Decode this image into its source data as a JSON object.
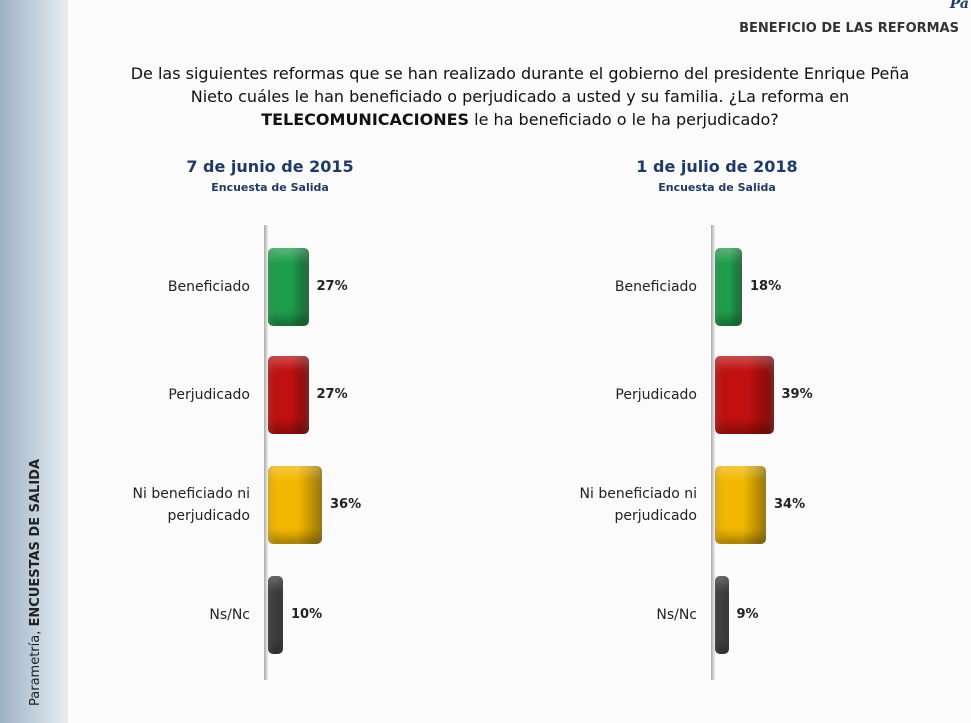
{
  "corner": "Pa",
  "header": "BENEFICIO DE LAS REFORMAS",
  "question": {
    "lines": [
      "De las siguientes reformas que se han realizado durante el gobierno del presidente Enrique Peña",
      "Nieto cuáles le han beneficiado o perjudicado a usted y su familia. ¿La reforma en"
    ],
    "bold": "TELECOMUNICACIONES",
    "rest": "le ha beneficiado o le ha perjudicado?"
  },
  "sidebar": {
    "brand": "Parametría,",
    "text": "ENCUESTAS DE SALIDA"
  },
  "chart_data": [
    {
      "type": "bar",
      "orientation": "horizontal",
      "title": "7 de junio de 2015",
      "subtitle": "Encuesta de Salida",
      "categories": [
        "Beneficiado",
        "Perjudicado",
        "Ni beneficiado ni perjudicado",
        "Ns/Nc"
      ],
      "values": [
        27,
        27,
        36,
        10
      ],
      "value_labels": [
        "27%",
        "27%",
        "36%",
        "10%"
      ],
      "colors": [
        "#1e9e4c",
        "#c01010",
        "#f2b800",
        "#3a3a3a"
      ]
    },
    {
      "type": "bar",
      "orientation": "horizontal",
      "title": "1 de julio de 2018",
      "subtitle": "Encuesta de Salida",
      "categories": [
        "Beneficiado",
        "Perjudicado",
        "Ni beneficiado ni perjudicado",
        "Ns/Nc"
      ],
      "values": [
        18,
        39,
        34,
        9
      ],
      "value_labels": [
        "18%",
        "39%",
        "34%",
        "9%"
      ],
      "colors": [
        "#1e9e4c",
        "#c01010",
        "#f2b800",
        "#3a3a3a"
      ]
    }
  ]
}
